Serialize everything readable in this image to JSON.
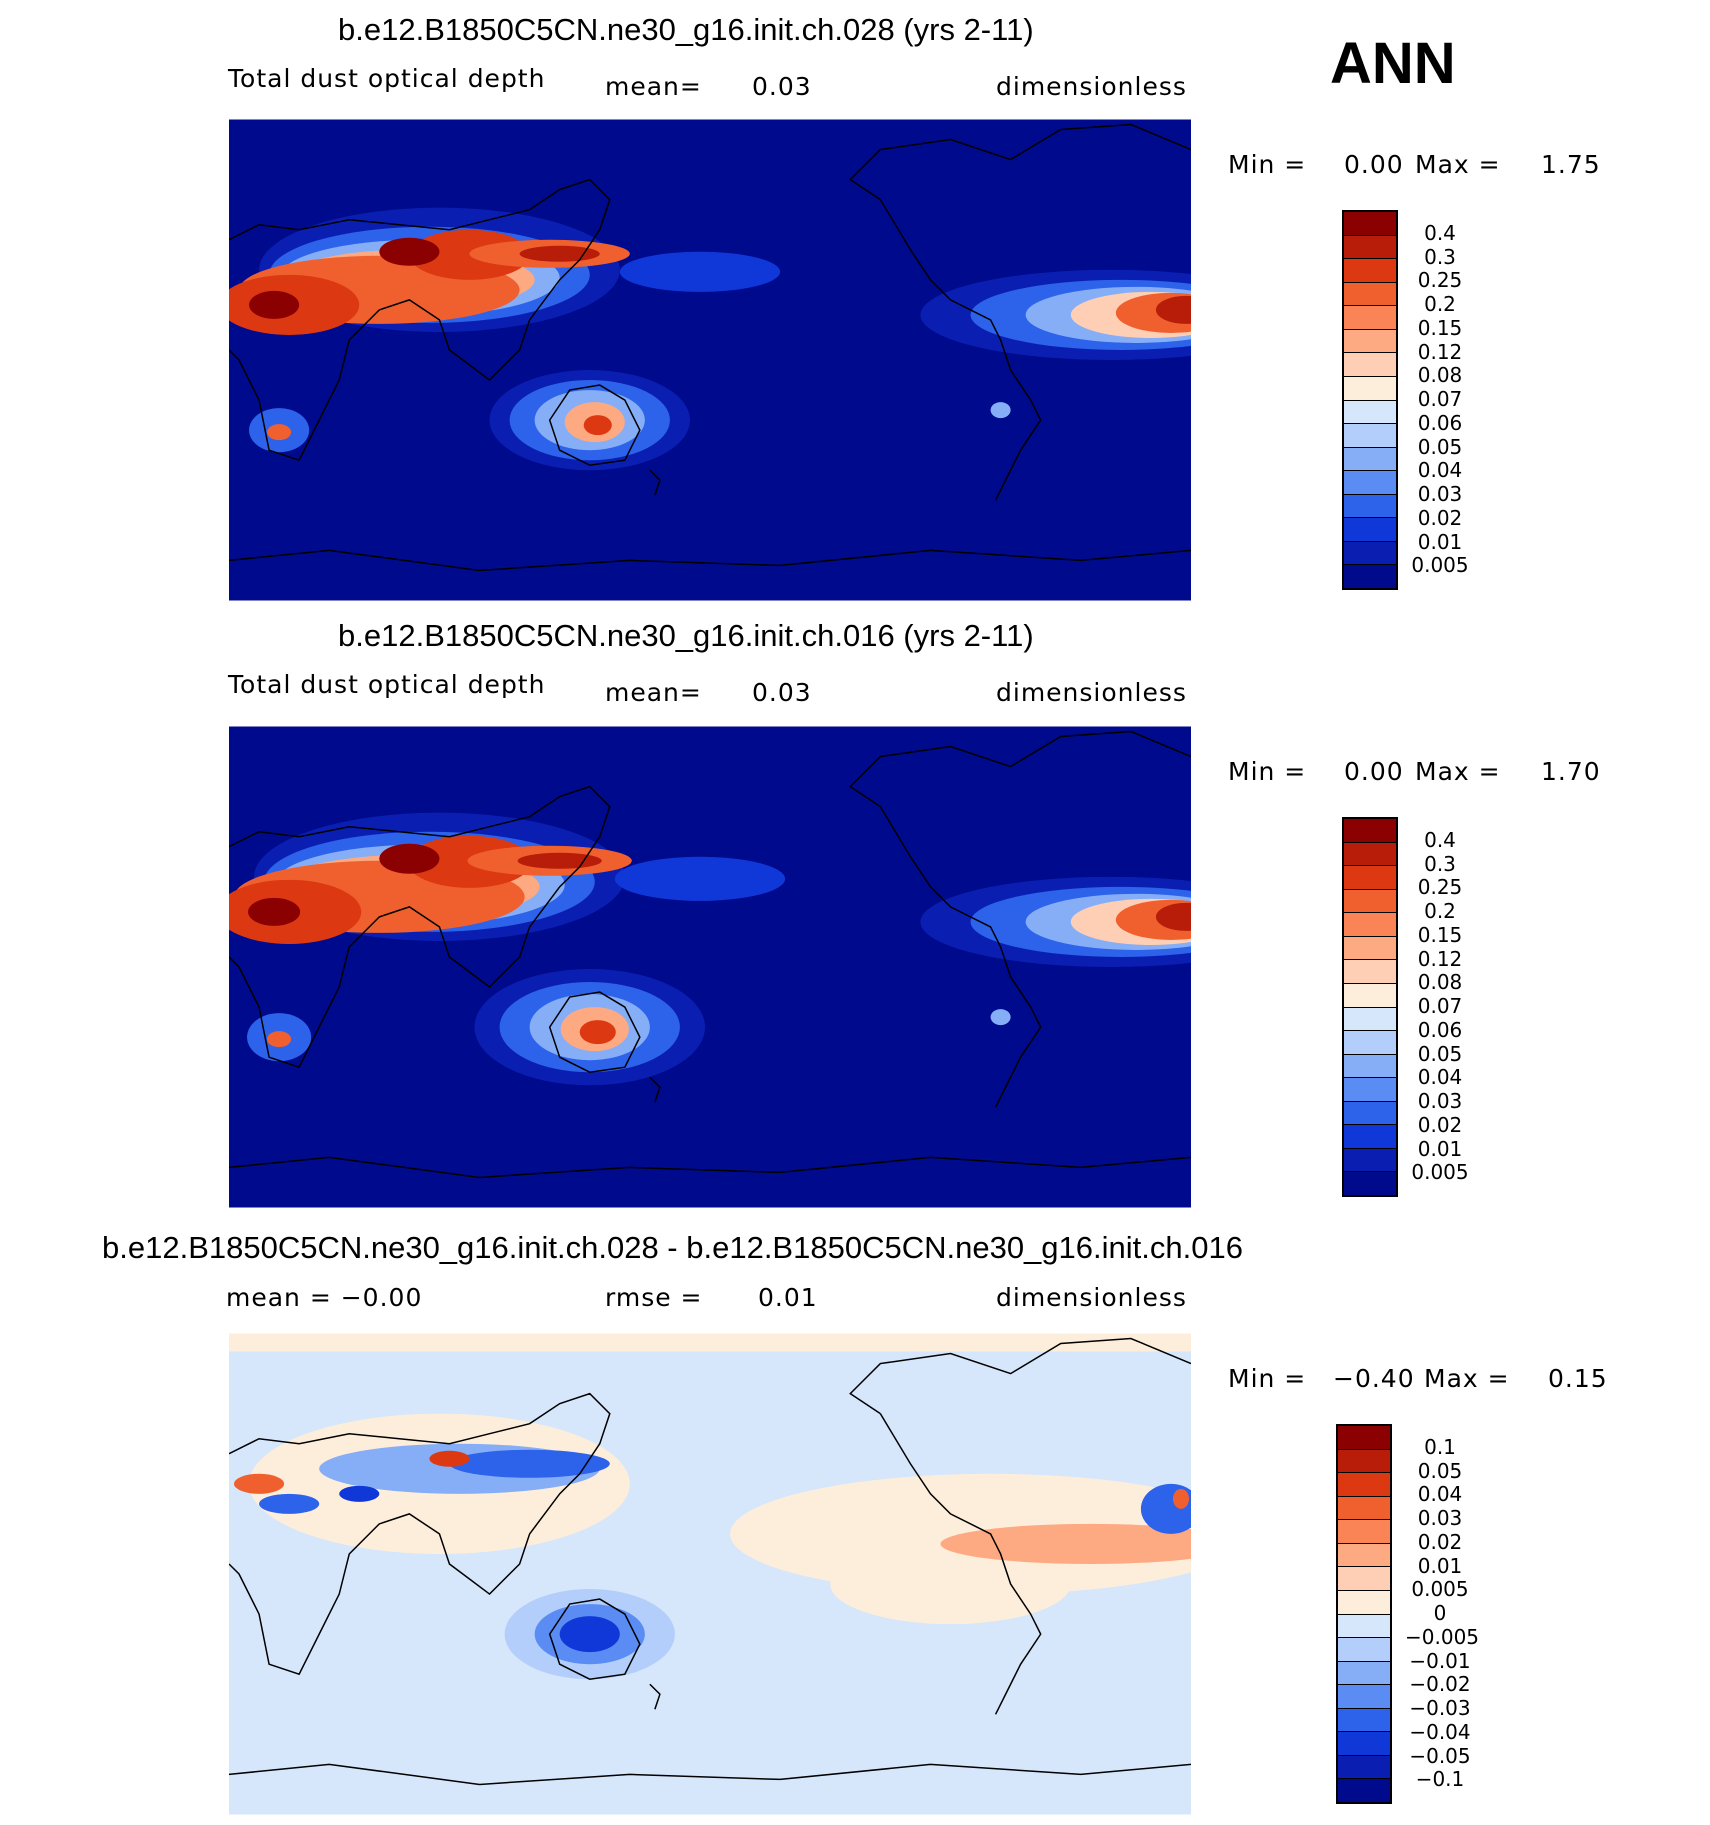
{
  "season": "ANN",
  "panels": [
    {
      "title": "b.e12.B1850C5CN.ne30_g16.init.ch.028 (yrs 2-11)",
      "left_label": "Total dust optical depth",
      "center_label": "mean=",
      "center_value": "0.03",
      "right_label": "dimensionless",
      "min_label": "Min =",
      "min_value": "0.00",
      "max_label": "Max =",
      "max_value": "1.75",
      "colorbar": {
        "labels": [
          "0.4",
          "0.3",
          "0.25",
          "0.2",
          "0.15",
          "0.12",
          "0.08",
          "0.07",
          "0.06",
          "0.05",
          "0.04",
          "0.03",
          "0.02",
          "0.01",
          "0.005"
        ],
        "colors": [
          "#8b0000",
          "#b81d0a",
          "#dc3912",
          "#f0602e",
          "#fb8456",
          "#fdaa82",
          "#fecfb4",
          "#fdeedc",
          "#d6e6fb",
          "#b3cefa",
          "#86aef7",
          "#5a8cf3",
          "#2d62ea",
          "#1038d8",
          "#0a1fb2",
          "#000a8c"
        ]
      }
    },
    {
      "title": "b.e12.B1850C5CN.ne30_g16.init.ch.016 (yrs 2-11)",
      "left_label": "Total dust optical depth",
      "center_label": "mean=",
      "center_value": "0.03",
      "right_label": "dimensionless",
      "min_label": "Min =",
      "min_value": "0.00",
      "max_label": "Max =",
      "max_value": "1.70",
      "colorbar": {
        "labels": [
          "0.4",
          "0.3",
          "0.25",
          "0.2",
          "0.15",
          "0.12",
          "0.08",
          "0.07",
          "0.06",
          "0.05",
          "0.04",
          "0.03",
          "0.02",
          "0.01",
          "0.005"
        ],
        "colors": [
          "#8b0000",
          "#b81d0a",
          "#dc3912",
          "#f0602e",
          "#fb8456",
          "#fdaa82",
          "#fecfb4",
          "#fdeedc",
          "#d6e6fb",
          "#b3cefa",
          "#86aef7",
          "#5a8cf3",
          "#2d62ea",
          "#1038d8",
          "#0a1fb2",
          "#000a8c"
        ]
      }
    },
    {
      "title": "b.e12.B1850C5CN.ne30_g16.init.ch.028 - b.e12.B1850C5CN.ne30_g16.init.ch.016",
      "left_label": "mean = −0.00",
      "center_label": "rmse =",
      "center_value": "0.01",
      "right_label": "dimensionless",
      "min_label": "Min =",
      "min_value": "−0.40",
      "max_label": "Max =",
      "max_value": "0.15",
      "colorbar": {
        "labels": [
          "0.1",
          "0.05",
          "0.04",
          "0.03",
          "0.02",
          "0.01",
          "0.005",
          "0",
          "−0.005",
          "−0.01",
          "−0.02",
          "−0.03",
          "−0.04",
          "−0.05",
          "−0.1"
        ],
        "colors": [
          "#8b0000",
          "#b81d0a",
          "#dc3912",
          "#f0602e",
          "#fb8456",
          "#fdaa82",
          "#fecfb4",
          "#fdeedc",
          "#d6e6fb",
          "#b3cefa",
          "#86aef7",
          "#5a8cf3",
          "#2d62ea",
          "#1038d8",
          "#0a1fb2",
          "#000a8c"
        ]
      }
    }
  ],
  "map_colors": {
    "background_abs": "#000a8c",
    "background_diff": "#d6e6fb",
    "coastline": "#000000"
  }
}
